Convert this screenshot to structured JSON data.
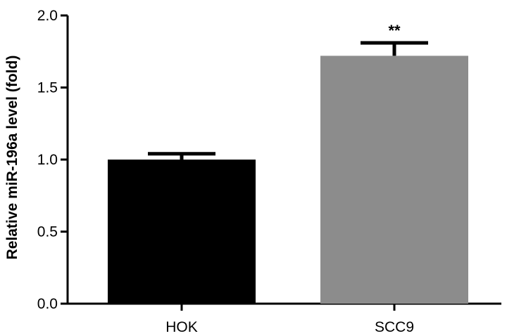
{
  "chart_data": {
    "type": "bar",
    "title": "",
    "xlabel": "",
    "ylabel": "Relative miR-196a level (fold)",
    "categories": [
      "HOK",
      "SCC9"
    ],
    "values": [
      1.0,
      1.72
    ],
    "errors": [
      0.04,
      0.09
    ],
    "bar_colors": [
      "#000000",
      "#8c8c8c"
    ],
    "annotations": [
      "",
      "**"
    ],
    "ylim": [
      0.0,
      2.0
    ],
    "yticks": [
      0.0,
      0.5,
      1.0,
      1.5,
      2.0
    ],
    "ytick_labels": [
      "0.0",
      "0.5",
      "1.0",
      "1.5",
      "2.0"
    ],
    "grid": false,
    "legend": "none"
  }
}
